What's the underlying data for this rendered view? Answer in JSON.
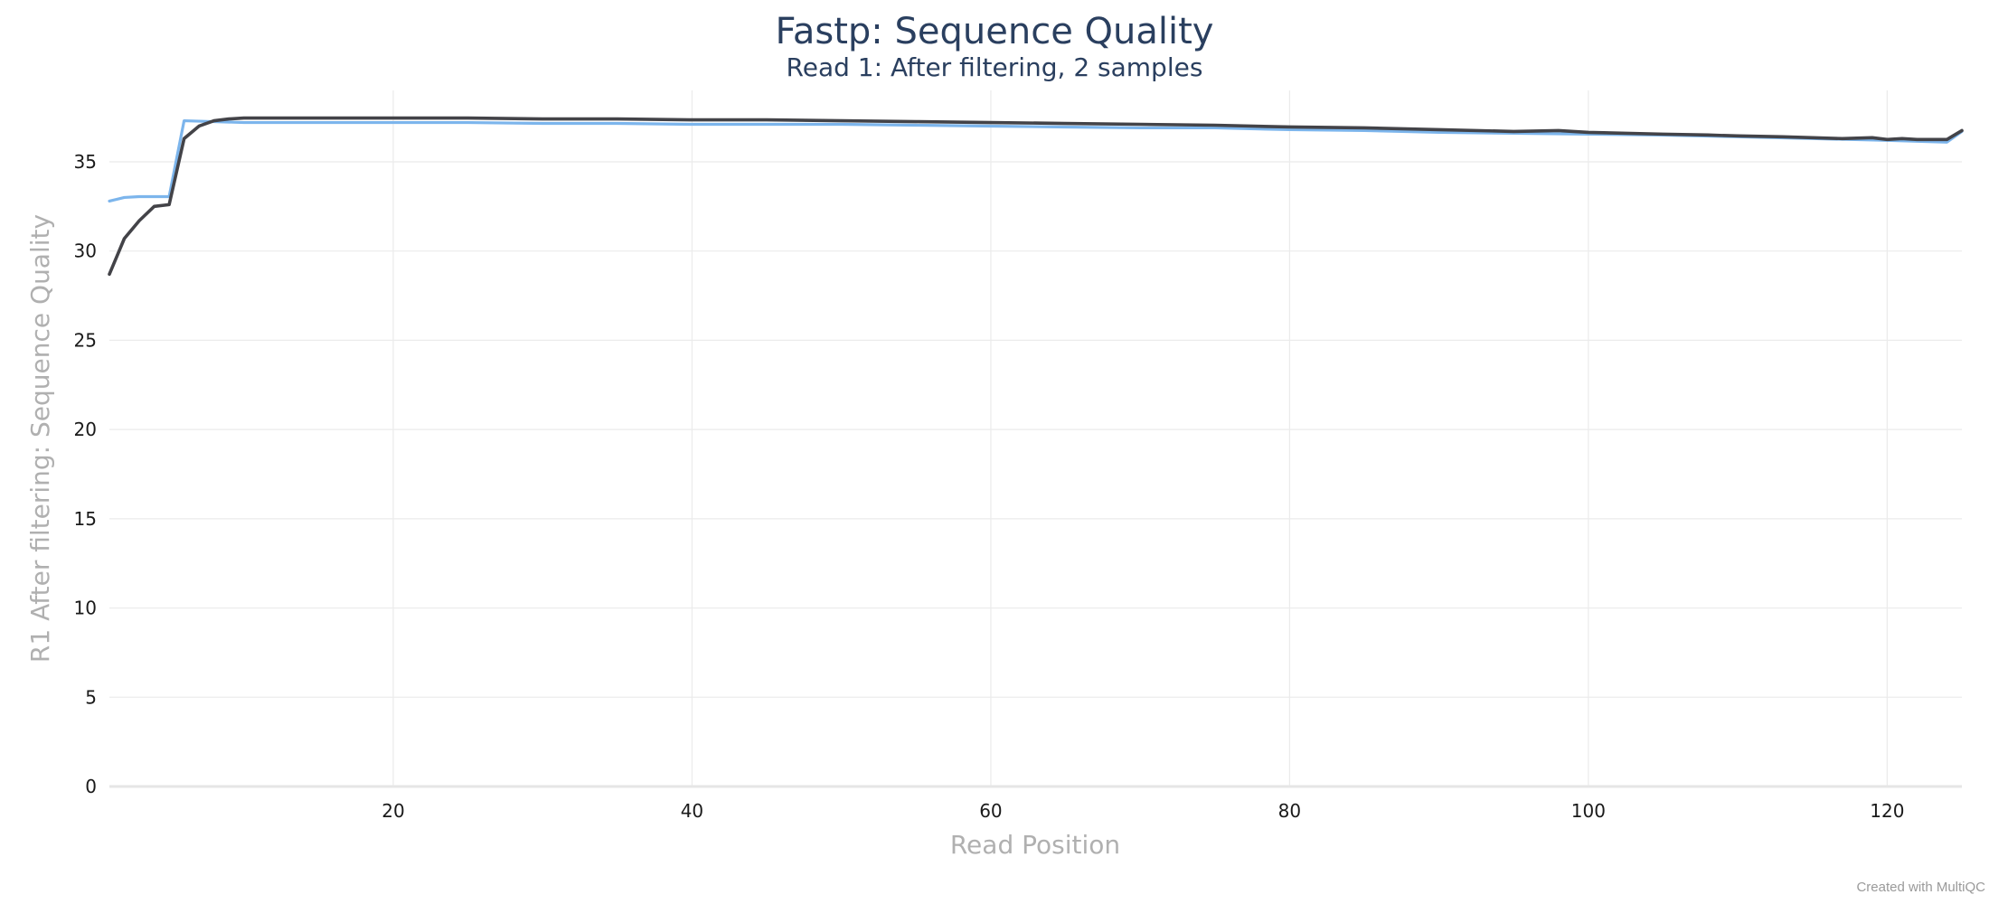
{
  "chart_data": {
    "type": "line",
    "title": "Fastp: Sequence Quality",
    "subtitle": "Read 1: After filtering, 2 samples",
    "xlabel": "Read Position",
    "ylabel": "R1 After filtering: Sequence Quality",
    "xlim": [
      1,
      125
    ],
    "ylim": [
      0,
      39
    ],
    "xticks": [
      20,
      40,
      60,
      80,
      100,
      120
    ],
    "yticks": [
      0,
      5,
      10,
      15,
      20,
      25,
      30,
      35
    ],
    "grid": true,
    "series": [
      {
        "color": "#7cb5ec",
        "x": [
          1,
          2,
          3,
          4,
          5,
          6,
          8,
          10,
          15,
          20,
          25,
          30,
          35,
          40,
          45,
          50,
          55,
          60,
          65,
          70,
          75,
          80,
          85,
          90,
          95,
          100,
          105,
          110,
          115,
          120,
          124,
          125
        ],
        "y": [
          32.8,
          33.0,
          33.05,
          33.05,
          33.05,
          37.3,
          37.25,
          37.2,
          37.2,
          37.2,
          37.2,
          37.15,
          37.15,
          37.1,
          37.1,
          37.1,
          37.05,
          37.0,
          36.95,
          36.9,
          36.9,
          36.8,
          36.75,
          36.65,
          36.6,
          36.55,
          36.5,
          36.4,
          36.3,
          36.2,
          36.1,
          36.7
        ]
      },
      {
        "color": "#434348",
        "x": [
          1,
          2,
          3,
          4,
          5,
          6,
          7,
          8,
          9,
          10,
          15,
          20,
          25,
          30,
          35,
          40,
          45,
          50,
          55,
          60,
          65,
          70,
          75,
          80,
          85,
          90,
          95,
          98,
          100,
          105,
          108,
          110,
          113,
          115,
          117,
          119,
          120,
          121,
          122,
          124,
          125
        ],
        "y": [
          28.7,
          30.7,
          31.7,
          32.5,
          32.6,
          36.3,
          37.0,
          37.3,
          37.4,
          37.45,
          37.45,
          37.45,
          37.45,
          37.4,
          37.4,
          37.35,
          37.35,
          37.3,
          37.25,
          37.2,
          37.15,
          37.1,
          37.05,
          36.95,
          36.9,
          36.8,
          36.7,
          36.75,
          36.65,
          36.55,
          36.5,
          36.45,
          36.4,
          36.35,
          36.3,
          36.35,
          36.25,
          36.3,
          36.25,
          36.25,
          36.75
        ]
      }
    ]
  },
  "credit": "Created with MultiQC"
}
